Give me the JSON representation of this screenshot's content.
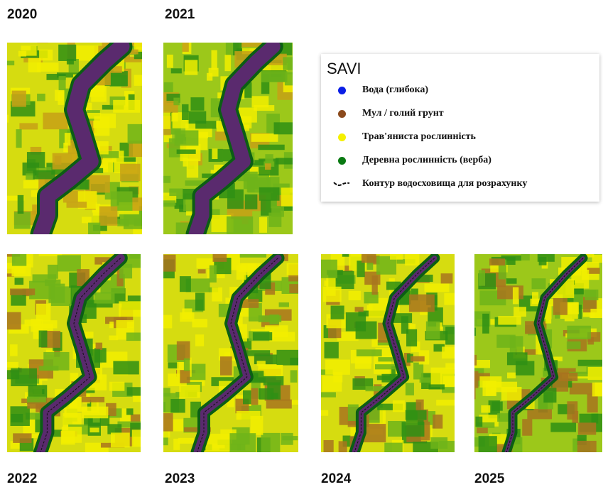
{
  "panels": [
    {
      "year": "2020"
    },
    {
      "year": "2021"
    },
    {
      "year": "2022"
    },
    {
      "year": "2023"
    },
    {
      "year": "2024"
    },
    {
      "year": "2025"
    }
  ],
  "legend": {
    "title": "SAVI",
    "items": [
      {
        "label": "Вода (глибока)",
        "color": "#0a1ee6"
      },
      {
        "label": "Мул / голий грунт",
        "color": "#8b4a1c"
      },
      {
        "label": "Трав'яниста рослинність",
        "color": "#f5f000"
      },
      {
        "label": "Деревна рослинність (верба)",
        "color": "#0a7a12"
      },
      {
        "label": "Контур водосховища для розрахунку",
        "color": "#111111"
      }
    ]
  }
}
